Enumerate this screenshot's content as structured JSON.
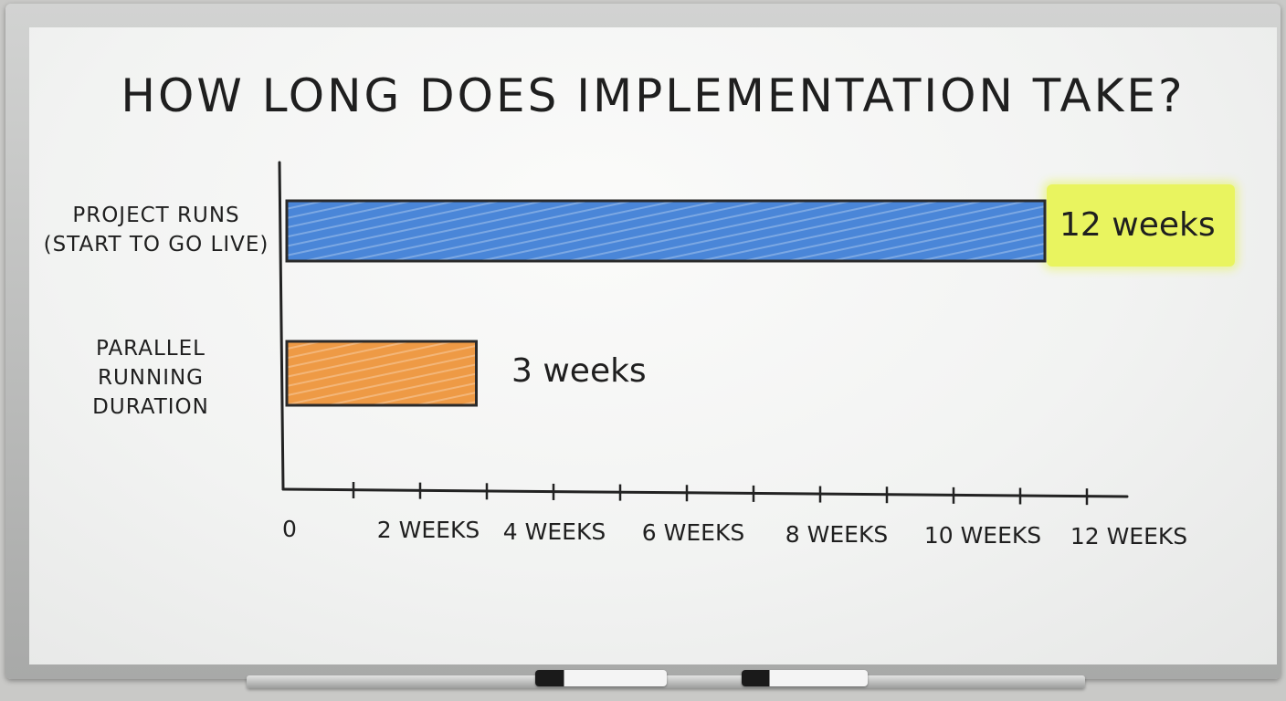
{
  "chart_data": {
    "type": "bar",
    "orientation": "horizontal",
    "title": "HOW LONG DOES IMPLEMENTATION TAKE?",
    "categories": [
      "PROJECT RUNS\n(START TO GO LIVE)",
      "PARALLEL\nRUNNING\nDURATION"
    ],
    "values": [
      12,
      3
    ],
    "value_labels": [
      "12 weeks",
      "3 weeks"
    ],
    "xlim": [
      0,
      12
    ],
    "tick_labels": [
      "0",
      "2 WEEKS",
      "4 WEEKS",
      "6 WEEKS",
      "8 WEEKS",
      "10 WEEKS",
      "12 WEEKS"
    ],
    "bar_colors": [
      "#4a86d8",
      "#ee9a45"
    ],
    "highlight_color": "#e9f550",
    "grid": false
  }
}
